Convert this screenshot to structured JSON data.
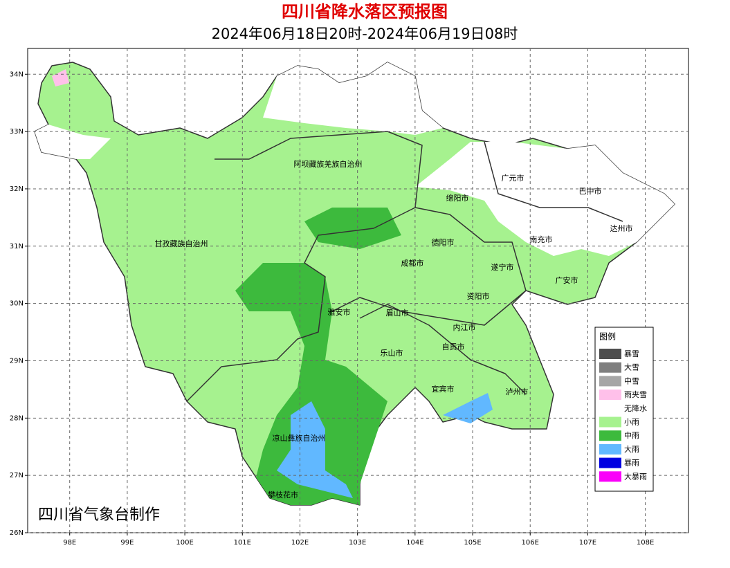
{
  "title": "四川省降水落区预报图",
  "subtitle": "2024年06月18日20时-2024年06月19日08时",
  "map": {
    "xlim": [
      97.27,
      108.75
    ],
    "ylim": [
      26,
      34.45
    ],
    "grid": true,
    "xticks": [
      {
        "value": 98,
        "label": "98E"
      },
      {
        "value": 99,
        "label": "99E"
      },
      {
        "value": 100,
        "label": "100E"
      },
      {
        "value": 101,
        "label": "101E"
      },
      {
        "value": 102,
        "label": "102E"
      },
      {
        "value": 103,
        "label": "103E"
      },
      {
        "value": 104,
        "label": "104E"
      },
      {
        "value": 105,
        "label": "105E"
      },
      {
        "value": 106,
        "label": "106E"
      },
      {
        "value": 107,
        "label": "107E"
      },
      {
        "value": 108,
        "label": "108E"
      }
    ],
    "yticks": [
      {
        "value": 26,
        "label": "26N"
      },
      {
        "value": 27,
        "label": "27N"
      },
      {
        "value": 28,
        "label": "28N"
      },
      {
        "value": 29,
        "label": "29N"
      },
      {
        "value": 30,
        "label": "30N"
      },
      {
        "value": 31,
        "label": "31N"
      },
      {
        "value": 32,
        "label": "32N"
      },
      {
        "value": 33,
        "label": "33N"
      },
      {
        "value": 34,
        "label": "34N"
      }
    ],
    "regions": [
      "阿坝藏族羌族自治州",
      "甘孜藏族自治州",
      "凉山彝族自治州",
      "攀枝花市",
      "雅安市",
      "眉山市",
      "乐山市",
      "成都市",
      "德阳市",
      "绵阳市",
      "广元市",
      "巴中市",
      "达州市",
      "南充市",
      "遂宁市",
      "广安市",
      "资阳市",
      "内江市",
      "自贡市",
      "宜宾市",
      "泸州市"
    ],
    "credit": "四川省气象台制作"
  },
  "legend": {
    "title": "图例",
    "items": [
      {
        "label": "暴雪",
        "color": "#4d4d4d"
      },
      {
        "label": "大雪",
        "color": "#7f7f7f"
      },
      {
        "label": "中雪",
        "color": "#a6a6a6"
      },
      {
        "label": "雨夹雪",
        "color": "#ffc0ea"
      },
      {
        "label": "无降水",
        "color": "#ffffff"
      },
      {
        "label": "小雨",
        "color": "#a6f28f"
      },
      {
        "label": "中雨",
        "color": "#3dba3d"
      },
      {
        "label": "大雨",
        "color": "#61b8ff"
      },
      {
        "label": "暴雨",
        "color": "#0000e1"
      },
      {
        "label": "大暴雨",
        "color": "#fa00fa"
      }
    ]
  }
}
